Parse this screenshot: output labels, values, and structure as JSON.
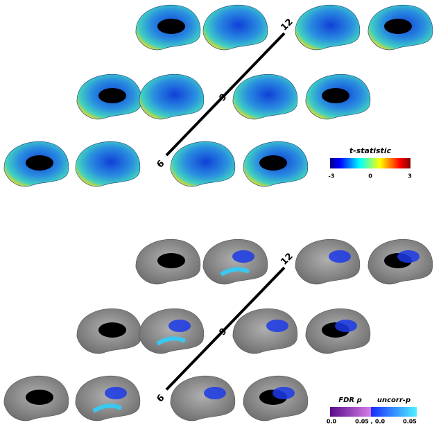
{
  "top_panel": {
    "ages": [
      "6",
      "9",
      "12"
    ],
    "colorbar": {
      "title": "t-statistic",
      "ticks": [
        "-3",
        "0",
        "3"
      ]
    }
  },
  "bottom_panel": {
    "ages": [
      "6",
      "9",
      "12"
    ],
    "legend": {
      "fdr_label": "FDR p",
      "uncorr_label": "uncorr-p",
      "fdr_ticks": [
        "0.0",
        "0.05"
      ],
      "separator": ",",
      "uncorr_ticks": [
        "0.0",
        "0.05"
      ]
    }
  }
}
